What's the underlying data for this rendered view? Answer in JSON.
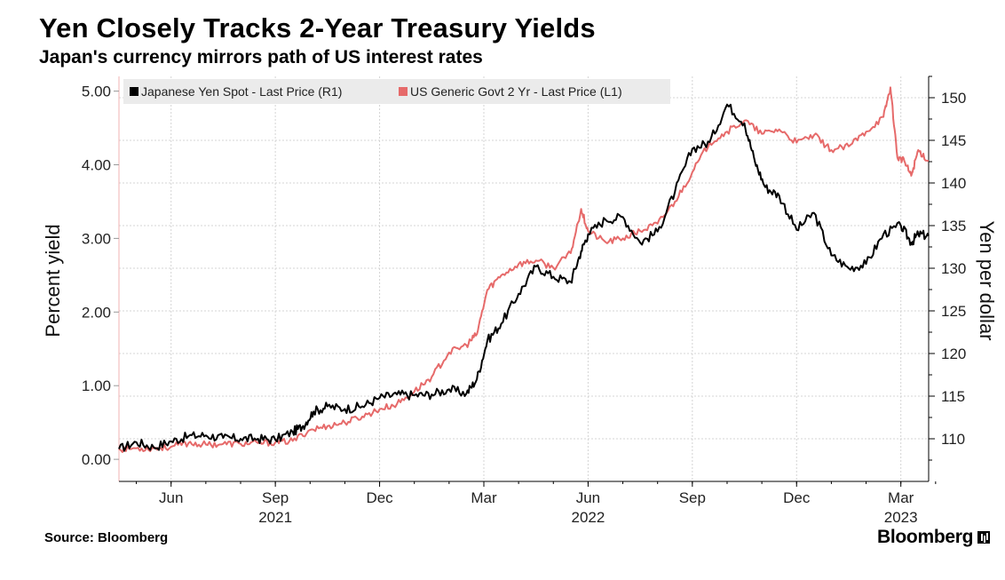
{
  "chart_data": {
    "type": "line",
    "title": "Yen Closely Tracks 2-Year Treasury Yields",
    "subtitle": "Japan's currency mirrors path of US interest rates",
    "source": "Source: Bloomberg",
    "brand": "Bloomberg",
    "left_axis": {
      "label": "Percent yield",
      "range": [
        -0.3,
        5.2
      ],
      "ticks": [
        0.0,
        1.0,
        2.0,
        3.0,
        4.0,
        5.0
      ],
      "tick_labels": [
        "0.00",
        "1.00",
        "2.00",
        "3.00",
        "4.00",
        "5.00"
      ]
    },
    "right_axis": {
      "label": "Yen per dollar",
      "range": [
        105,
        152.5
      ],
      "ticks": [
        110,
        115,
        120,
        125,
        130,
        135,
        140,
        145,
        150
      ],
      "tick_labels": [
        "110",
        "115",
        "120",
        "125",
        "130",
        "135",
        "140",
        "145",
        "150"
      ]
    },
    "x_axis": {
      "range": [
        0,
        23.3
      ],
      "unit": "months since Apr 2021",
      "ticks": [
        {
          "pos": 1.5,
          "label": "Jun",
          "year": ""
        },
        {
          "pos": 4.5,
          "label": "Sep",
          "year": "2021"
        },
        {
          "pos": 7.5,
          "label": "Dec",
          "year": ""
        },
        {
          "pos": 10.5,
          "label": "Mar",
          "year": ""
        },
        {
          "pos": 13.5,
          "label": "Jun",
          "year": "2022"
        },
        {
          "pos": 16.5,
          "label": "Sep",
          "year": ""
        },
        {
          "pos": 19.5,
          "label": "Dec",
          "year": ""
        },
        {
          "pos": 22.5,
          "label": "Mar",
          "year": "2023"
        }
      ]
    },
    "grid": true,
    "legend_position": "top-left",
    "series": [
      {
        "name": "Japanese Yen Spot - Last Price (R1)",
        "axis": "right",
        "color": "#000000",
        "points": [
          [
            0,
            108.8
          ],
          [
            0.5,
            109.6
          ],
          [
            1,
            109.0
          ],
          [
            1.5,
            109.7
          ],
          [
            2,
            110.3
          ],
          [
            2.5,
            110.4
          ],
          [
            3,
            110.1
          ],
          [
            3.5,
            110.0
          ],
          [
            4,
            110.0
          ],
          [
            4.5,
            109.9
          ],
          [
            5,
            110.8
          ],
          [
            5.3,
            111.5
          ],
          [
            5.6,
            113.2
          ],
          [
            6,
            113.8
          ],
          [
            6.5,
            113.5
          ],
          [
            7,
            113.8
          ],
          [
            7.5,
            114.8
          ],
          [
            8,
            115.2
          ],
          [
            8.5,
            115.1
          ],
          [
            9,
            115.2
          ],
          [
            9.5,
            115.8
          ],
          [
            10,
            115.3
          ],
          [
            10.3,
            117.0
          ],
          [
            10.6,
            121.5
          ],
          [
            11,
            123.5
          ],
          [
            11.5,
            127.0
          ],
          [
            12,
            130.2
          ],
          [
            12.5,
            129.0
          ],
          [
            13,
            128.4
          ],
          [
            13.3,
            132.0
          ],
          [
            13.5,
            134.0
          ],
          [
            14,
            135.7
          ],
          [
            14.5,
            136.0
          ],
          [
            15,
            133.0
          ],
          [
            15.5,
            134.3
          ],
          [
            16,
            139.0
          ],
          [
            16.5,
            144.0
          ],
          [
            17,
            144.8
          ],
          [
            17.5,
            149.2
          ],
          [
            18,
            147.0
          ],
          [
            18.3,
            142.5
          ],
          [
            18.6,
            139.5
          ],
          [
            19,
            138.5
          ],
          [
            19.5,
            134.5
          ],
          [
            20,
            136.5
          ],
          [
            20.5,
            131.5
          ],
          [
            21,
            130.0
          ],
          [
            21.5,
            130.5
          ],
          [
            22,
            134.0
          ],
          [
            22.5,
            135.0
          ],
          [
            22.8,
            133.0
          ],
          [
            23,
            134.0
          ],
          [
            23.3,
            133.8
          ]
        ]
      },
      {
        "name": "US Generic Govt 2 Yr - Last Price (L1)",
        "axis": "left",
        "color": "#e66a6a",
        "points": [
          [
            0,
            0.14
          ],
          [
            0.5,
            0.15
          ],
          [
            1,
            0.15
          ],
          [
            1.5,
            0.17
          ],
          [
            2,
            0.22
          ],
          [
            2.5,
            0.2
          ],
          [
            3,
            0.21
          ],
          [
            3.5,
            0.21
          ],
          [
            4,
            0.22
          ],
          [
            4.5,
            0.23
          ],
          [
            5,
            0.25
          ],
          [
            5.5,
            0.4
          ],
          [
            6,
            0.45
          ],
          [
            6.5,
            0.5
          ],
          [
            7,
            0.58
          ],
          [
            7.5,
            0.68
          ],
          [
            8,
            0.75
          ],
          [
            8.5,
            0.92
          ],
          [
            9,
            1.12
          ],
          [
            9.5,
            1.45
          ],
          [
            10,
            1.55
          ],
          [
            10.3,
            1.7
          ],
          [
            10.6,
            2.3
          ],
          [
            11,
            2.5
          ],
          [
            11.5,
            2.65
          ],
          [
            12,
            2.7
          ],
          [
            12.5,
            2.6
          ],
          [
            13,
            2.8
          ],
          [
            13.3,
            3.4
          ],
          [
            13.5,
            3.1
          ],
          [
            14,
            2.95
          ],
          [
            14.5,
            3.0
          ],
          [
            15,
            3.1
          ],
          [
            15.5,
            3.2
          ],
          [
            16,
            3.5
          ],
          [
            16.5,
            3.9
          ],
          [
            17,
            4.3
          ],
          [
            17.5,
            4.45
          ],
          [
            18,
            4.6
          ],
          [
            18.5,
            4.42
          ],
          [
            19,
            4.48
          ],
          [
            19.5,
            4.3
          ],
          [
            20,
            4.4
          ],
          [
            20.5,
            4.2
          ],
          [
            21,
            4.25
          ],
          [
            21.5,
            4.45
          ],
          [
            22,
            4.65
          ],
          [
            22.2,
            5.05
          ],
          [
            22.4,
            4.1
          ],
          [
            22.6,
            4.05
          ],
          [
            22.8,
            3.85
          ],
          [
            23,
            4.2
          ],
          [
            23.3,
            4.05
          ]
        ]
      }
    ]
  }
}
